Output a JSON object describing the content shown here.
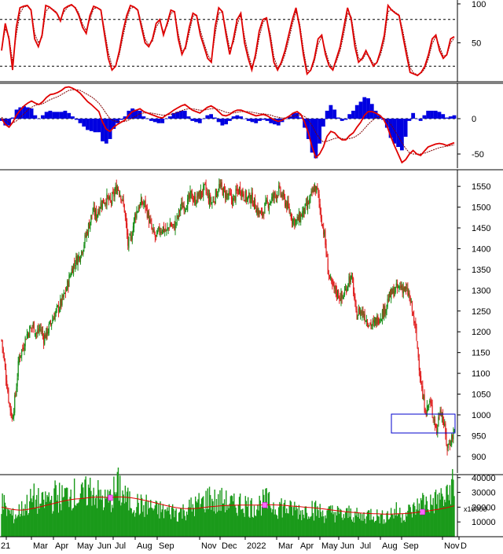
{
  "colors": {
    "up": "#1a8f1a",
    "down": "#e02020",
    "oscillator": "#e00000",
    "signal": "#800000",
    "macd_hist": "#0000e0",
    "volume": "#1a9a1a",
    "volume_ma": "#e00000",
    "marker": "#ff66ff",
    "highlight_box": "#0000cc",
    "grid": "#000000"
  },
  "x_axis": {
    "labels": [
      "21",
      "Mar",
      "Apr",
      "May",
      "Jun",
      "Jul",
      "Aug",
      "Sep",
      "Nov",
      "Dec",
      "2022",
      "Mar",
      "Apr",
      "May",
      "Jun",
      "Jul",
      "Aug",
      "Sep",
      "Nov",
      "D"
    ]
  },
  "chart_data": [
    {
      "name": "stochastic",
      "type": "line",
      "y_ticks": [
        "100",
        "50"
      ],
      "ylim": [
        0,
        105
      ],
      "reference_lines": [
        80,
        20
      ],
      "series": [
        {
          "role": "main",
          "values": [
            40,
            75,
            55,
            15,
            70,
            95,
            97,
            98,
            92,
            55,
            45,
            60,
            98,
            96,
            92,
            88,
            78,
            94,
            97,
            99,
            95,
            85,
            70,
            62,
            85,
            97,
            95,
            92,
            60,
            30,
            15,
            20,
            40,
            65,
            85,
            98,
            96,
            92,
            70,
            50,
            45,
            55,
            75,
            80,
            60,
            75,
            92,
            90,
            55,
            35,
            45,
            70,
            88,
            85,
            60,
            45,
            30,
            25,
            70,
            95,
            90,
            60,
            35,
            55,
            80,
            88,
            50,
            30,
            15,
            35,
            65,
            80,
            82,
            55,
            25,
            15,
            25,
            40,
            60,
            80,
            95,
            70,
            35,
            10,
            15,
            30,
            55,
            60,
            35,
            20,
            15,
            30,
            45,
            70,
            95,
            80,
            45,
            25,
            30,
            40,
            30,
            20,
            25,
            40,
            60,
            98,
            92,
            88,
            85,
            60,
            35,
            12,
            10,
            8,
            12,
            20,
            35,
            55,
            60,
            40,
            30,
            35,
            55,
            58
          ]
        },
        {
          "role": "signal",
          "values": [
            42,
            68,
            58,
            25,
            60,
            88,
            96,
            97,
            93,
            62,
            50,
            57,
            90,
            96,
            93,
            89,
            80,
            90,
            96,
            98,
            96,
            88,
            74,
            66,
            80,
            94,
            95,
            93,
            66,
            38,
            20,
            20,
            35,
            58,
            80,
            94,
            96,
            93,
            75,
            55,
            47,
            52,
            70,
            78,
            64,
            72,
            88,
            90,
            62,
            40,
            42,
            63,
            84,
            86,
            66,
            50,
            35,
            27,
            60,
            88,
            90,
            66,
            42,
            50,
            73,
            86,
            58,
            36,
            20,
            30,
            57,
            76,
            81,
            62,
            32,
            18,
            22,
            35,
            53,
            74,
            90,
            75,
            42,
            15,
            14,
            26,
            48,
            58,
            40,
            24,
            17,
            26,
            40,
            62,
            88,
            84,
            54,
            30,
            28,
            36,
            32,
            23,
            24,
            35,
            53,
            90,
            93,
            89,
            86,
            66,
            42,
            18,
            11,
            9,
            11,
            17,
            30,
            49,
            58,
            45,
            33,
            34,
            50,
            56
          ]
        }
      ]
    },
    {
      "name": "macd",
      "type": "line",
      "y_ticks": [
        "0",
        "-50"
      ],
      "ylim": [
        -70,
        50
      ],
      "series": [
        {
          "role": "macd",
          "values": [
            0,
            -8,
            -12,
            -5,
            5,
            12,
            18,
            22,
            25,
            22,
            20,
            24,
            30,
            34,
            35,
            37,
            40,
            44,
            45,
            43,
            40,
            36,
            30,
            24,
            20,
            15,
            10,
            -5,
            -15,
            -18,
            -12,
            -8,
            -5,
            -2,
            5,
            10,
            12,
            14,
            10,
            8,
            6,
            4,
            2,
            1,
            5,
            8,
            12,
            15,
            18,
            20,
            16,
            12,
            10,
            8,
            12,
            16,
            18,
            15,
            10,
            5,
            4,
            6,
            10,
            12,
            12,
            10,
            8,
            6,
            4,
            5,
            6,
            4,
            1,
            -2,
            -4,
            -2,
            1,
            4,
            8,
            10,
            6,
            -5,
            -20,
            -40,
            -55,
            -50,
            -40,
            -25,
            -18,
            -20,
            -26,
            -30,
            -30,
            -24,
            -20,
            -12,
            -5,
            5,
            10,
            10,
            8,
            5,
            0,
            -10,
            -25,
            -38,
            -50,
            -62,
            -58,
            -50,
            -45,
            -50,
            -52,
            -46,
            -40,
            -38,
            -36,
            -35,
            -36,
            -38,
            -36,
            -34
          ]
        },
        {
          "role": "signal",
          "values": [
            2,
            -2,
            -6,
            -6,
            -3,
            2,
            7,
            12,
            16,
            19,
            20,
            21,
            24,
            27,
            29,
            31,
            34,
            37,
            40,
            41,
            41,
            40,
            37,
            34,
            31,
            27,
            22,
            15,
            7,
            0,
            -3,
            -4,
            -4,
            -4,
            -2,
            1,
            4,
            7,
            8,
            8,
            8,
            7,
            6,
            5,
            5,
            6,
            7,
            9,
            11,
            13,
            14,
            14,
            13,
            12,
            12,
            13,
            14,
            14,
            13,
            11,
            9,
            8,
            8,
            9,
            10,
            10,
            10,
            9,
            8,
            7,
            7,
            6,
            5,
            3,
            2,
            1,
            1,
            2,
            3,
            5,
            5,
            3,
            -2,
            -10,
            -20,
            -28,
            -33,
            -32,
            -30,
            -28,
            -27,
            -28,
            -29,
            -28,
            -27,
            -24,
            -20,
            -14,
            -8,
            -3,
            1,
            2,
            1,
            -2,
            -8,
            -16,
            -25,
            -34,
            -42,
            -48,
            -50,
            -50,
            -50,
            -49,
            -47,
            -45,
            -43,
            -41,
            -40,
            -39,
            -38,
            -37
          ]
        }
      ]
    },
    {
      "name": "price",
      "type": "candlestick",
      "y_ticks": [
        "1550",
        "1500",
        "1450",
        "1400",
        "1350",
        "1300",
        "1250",
        "1200",
        "1150",
        "1100",
        "1050",
        "1000",
        "950",
        "900"
      ],
      "ylim": [
        860,
        1590
      ],
      "closes": [
        1180,
        1110,
        1040,
        990,
        1050,
        1140,
        1160,
        1190,
        1205,
        1215,
        1195,
        1210,
        1185,
        1200,
        1220,
        1240,
        1255,
        1270,
        1290,
        1320,
        1350,
        1370,
        1380,
        1400,
        1430,
        1460,
        1490,
        1480,
        1505,
        1515,
        1520,
        1510,
        1530,
        1550,
        1530,
        1495,
        1410,
        1430,
        1480,
        1500,
        1510,
        1505,
        1470,
        1440,
        1425,
        1445,
        1450,
        1440,
        1460,
        1450,
        1470,
        1500,
        1505,
        1510,
        1530,
        1515,
        1525,
        1535,
        1545,
        1520,
        1510,
        1530,
        1550,
        1540,
        1530,
        1525,
        1515,
        1535,
        1545,
        1530,
        1520,
        1525,
        1510,
        1490,
        1480,
        1500,
        1510,
        1520,
        1530,
        1540,
        1525,
        1510,
        1490,
        1470,
        1465,
        1475,
        1490,
        1500,
        1520,
        1545,
        1540,
        1480,
        1430,
        1350,
        1310,
        1300,
        1290,
        1280,
        1300,
        1330,
        1320,
        1240,
        1250,
        1245,
        1230,
        1220,
        1215,
        1230,
        1240,
        1250,
        1275,
        1290,
        1300,
        1305,
        1310,
        1300,
        1290,
        1250,
        1200,
        1120,
        1040,
        1010,
        1030,
        1000,
        960,
        1020,
        980,
        920,
        940,
        960
      ]
    },
    {
      "name": "volume",
      "type": "bar",
      "unit_label": "x10000",
      "y_ticks": [
        "40000",
        "30000",
        "20000",
        "10000"
      ],
      "ylim": [
        0,
        42000
      ],
      "values": [
        22000,
        18000,
        16000,
        14000,
        15000,
        18000,
        20000,
        22000,
        24000,
        26000,
        24000,
        22000,
        24000,
        26000,
        25000,
        28000,
        27000,
        26000,
        28000,
        30000,
        29000,
        27000,
        26000,
        28000,
        30000,
        32000,
        31000,
        28000,
        26000,
        24000,
        25000,
        26000,
        30000,
        34000,
        28000,
        26000,
        24000,
        22000,
        22000,
        21000,
        20000,
        21000,
        20000,
        19000,
        18000,
        18000,
        17000,
        17000,
        18000,
        17000,
        16000,
        17000,
        18000,
        19000,
        20000,
        21000,
        22000,
        23000,
        25000,
        27000,
        24000,
        22000,
        24000,
        25000,
        23000,
        22000,
        21000,
        22000,
        23000,
        22000,
        21000,
        20000,
        21000,
        22000,
        23000,
        24000,
        22000,
        21000,
        20000,
        21000,
        20000,
        19000,
        18000,
        19000,
        18000,
        17000,
        18000,
        19000,
        20000,
        18000,
        17000,
        16000,
        15000,
        16000,
        17000,
        16000,
        15000,
        14000,
        15000,
        16000,
        15000,
        14000,
        13000,
        14000,
        15000,
        16000,
        15000,
        14000,
        13000,
        14000,
        15000,
        16000,
        17000,
        16000,
        15000,
        16000,
        17000,
        18000,
        20000,
        22000,
        24000,
        23000,
        22000,
        24000,
        25000,
        26000,
        25000,
        30000,
        35000,
        28000
      ],
      "moving_average": [
        20000,
        19500,
        19000,
        18500,
        18200,
        18000,
        18100,
        18300,
        18700,
        19200,
        19700,
        20200,
        20800,
        21400,
        22000,
        22600,
        23200,
        23800,
        24300,
        24800,
        25200,
        25500,
        25700,
        25900,
        26200,
        26500,
        26700,
        26800,
        26800,
        26700,
        26600,
        26600,
        26700,
        26900,
        26900,
        26800,
        26600,
        26300,
        25900,
        25500,
        25000,
        24500,
        24000,
        23400,
        22800,
        22200,
        21600,
        21000,
        20500,
        20000,
        19600,
        19300,
        19100,
        19000,
        19000,
        19100,
        19300,
        19600,
        19900,
        20200,
        20400,
        20600,
        20800,
        21000,
        21100,
        21200,
        21300,
        21300,
        21400,
        21400,
        21400,
        21400,
        21400,
        21400,
        21500,
        21600,
        21600,
        21600,
        21500,
        21400,
        21300,
        21100,
        20900,
        20700,
        20500,
        20300,
        20100,
        19900,
        19700,
        19500,
        19300,
        19000,
        18700,
        18400,
        18100,
        17800,
        17500,
        17200,
        16900,
        16700,
        16500,
        16300,
        16100,
        15900,
        15800,
        15700,
        15600,
        15500,
        15400,
        15300,
        15300,
        15300,
        15400,
        15500,
        15600,
        15700,
        15900,
        16100,
        16400,
        16700,
        17000,
        17300,
        17600,
        18000,
        18400,
        18800,
        19200,
        19700,
        20300,
        20900
      ],
      "markers": [
        31,
        75,
        120
      ]
    }
  ]
}
